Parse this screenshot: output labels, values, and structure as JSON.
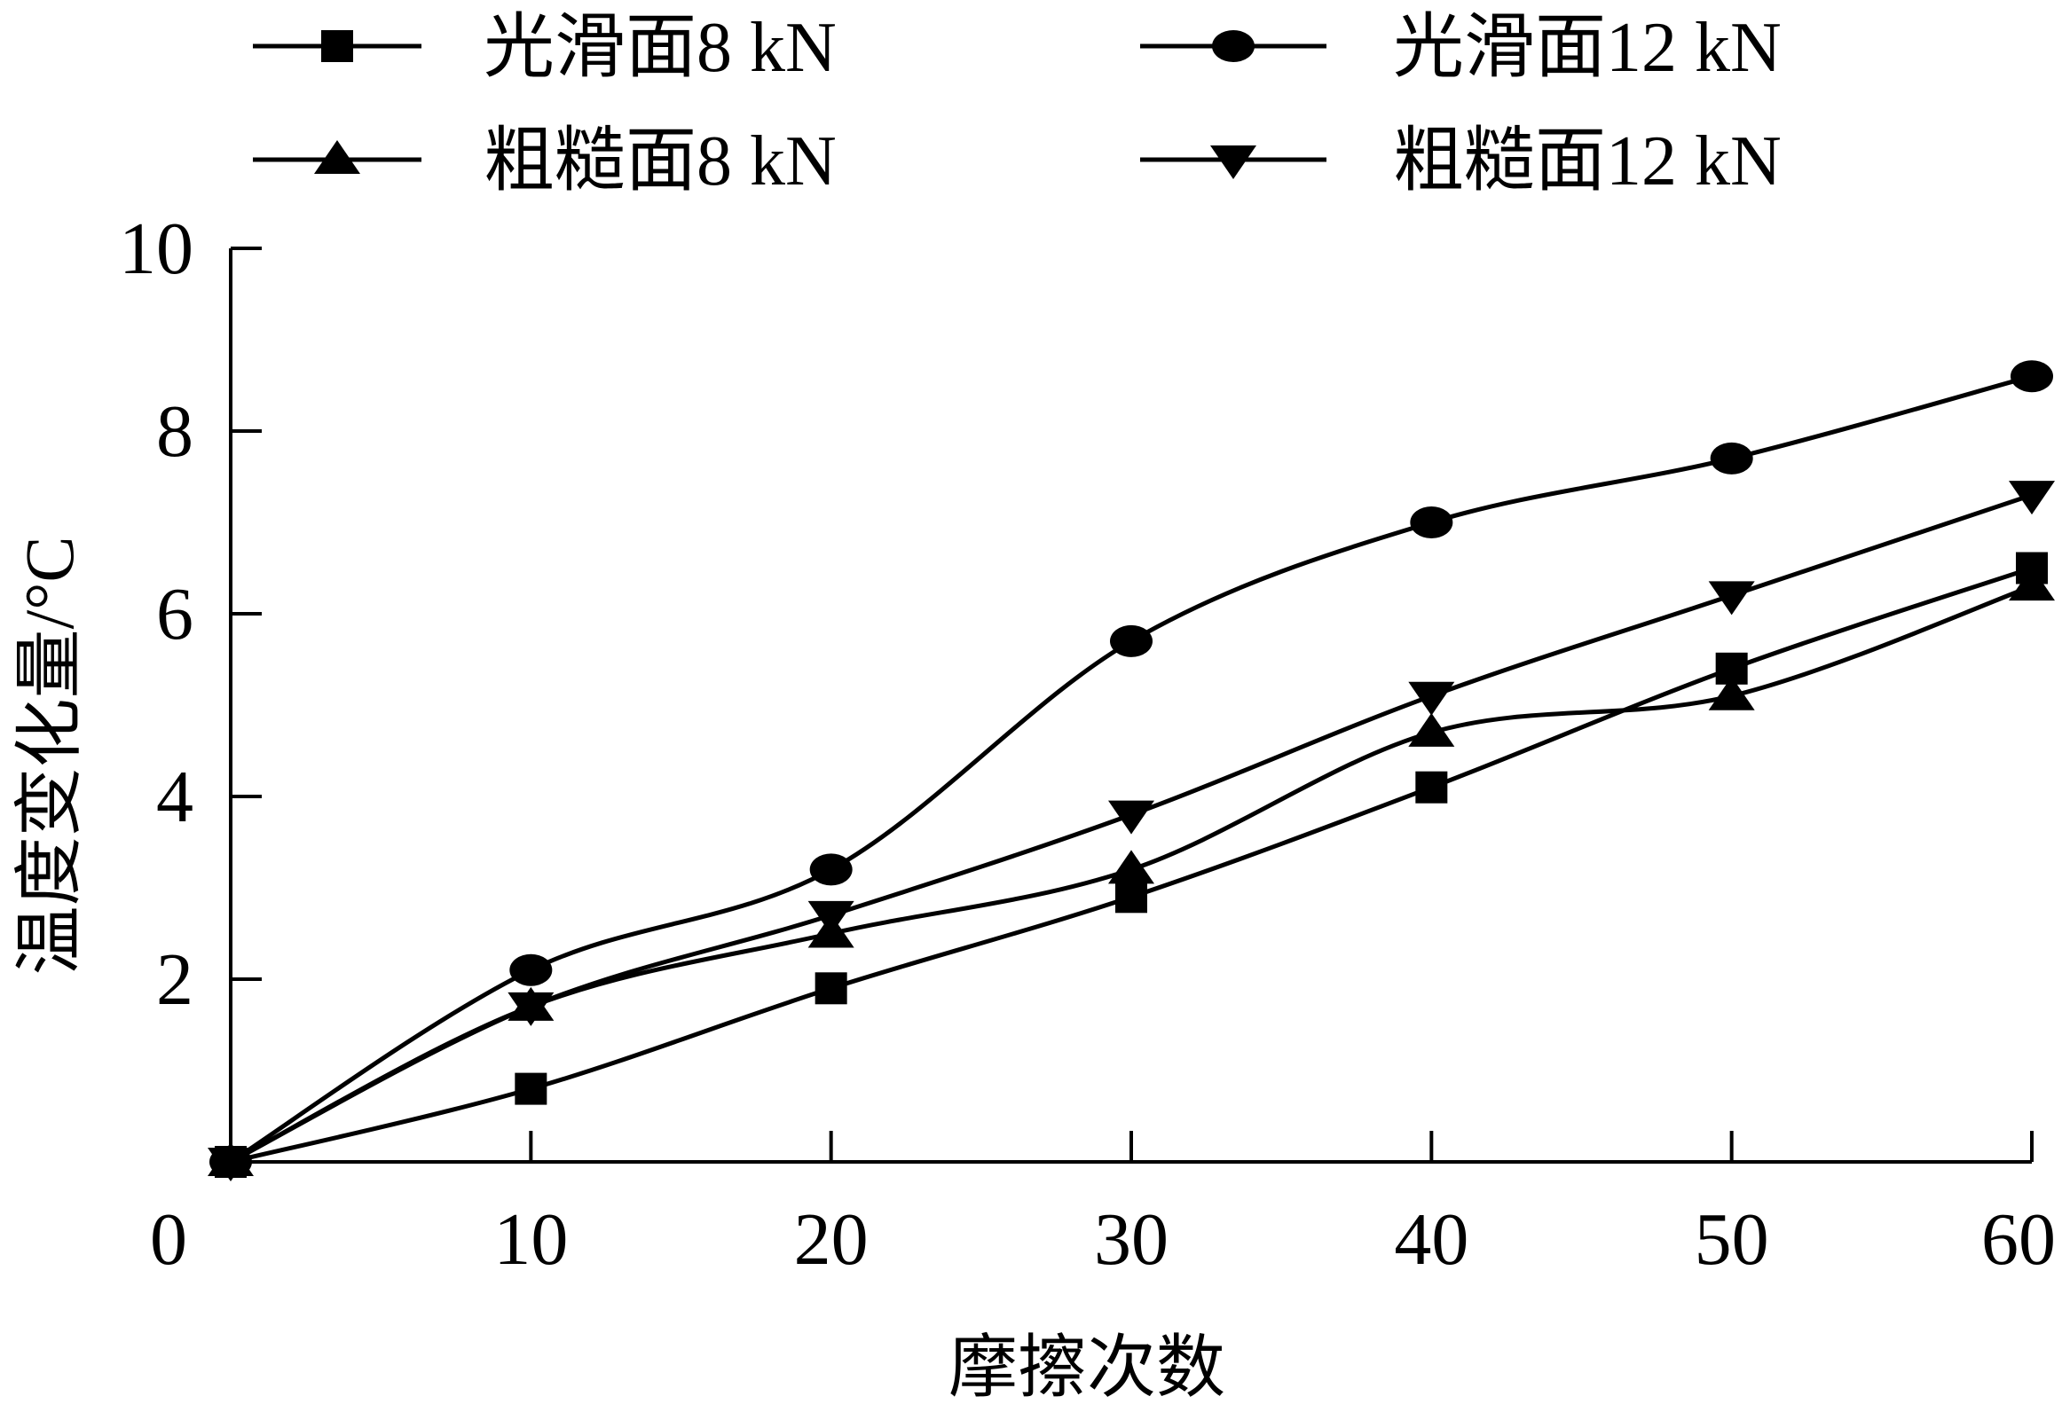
{
  "chart_data": {
    "type": "line",
    "title": "",
    "xlabel": "摩擦次数",
    "ylabel": "温度变化量/°C",
    "x": [
      0,
      10,
      20,
      30,
      40,
      50,
      60
    ],
    "xlim": [
      0,
      60
    ],
    "ylim": [
      0,
      10
    ],
    "x_ticks": [
      "0",
      "10",
      "20",
      "30",
      "40",
      "50",
      "60"
    ],
    "y_ticks": [
      "2",
      "4",
      "6",
      "8",
      "10"
    ],
    "grid": false,
    "legend_position": "top",
    "smooth": true,
    "series": [
      {
        "name": "光滑面8 kN",
        "marker": "square",
        "values": [
          0,
          0.8,
          1.9,
          2.9,
          4.1,
          5.4,
          6.5
        ]
      },
      {
        "name": "光滑面12 kN",
        "marker": "circle",
        "values": [
          0,
          2.1,
          3.2,
          5.7,
          7.0,
          7.7,
          8.6
        ]
      },
      {
        "name": "粗糙面8 kN",
        "marker": "triangle-up",
        "values": [
          0,
          1.7,
          2.5,
          3.2,
          4.7,
          5.1,
          6.3
        ]
      },
      {
        "name": "粗糙面12 kN",
        "marker": "triangle-down",
        "values": [
          0,
          1.7,
          2.7,
          3.8,
          5.1,
          6.2,
          7.3
        ]
      }
    ],
    "colors": {
      "line": "#000000",
      "background": "#ffffff"
    }
  }
}
